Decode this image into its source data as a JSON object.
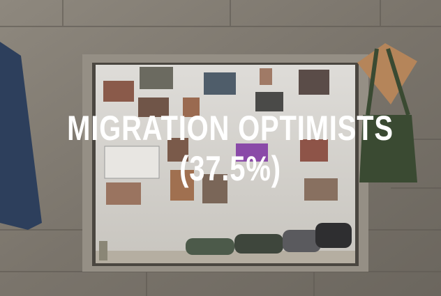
{
  "overlay": {
    "title": "MIGRATION OPTIMISTS",
    "subtitle": "(37.5%)"
  }
}
